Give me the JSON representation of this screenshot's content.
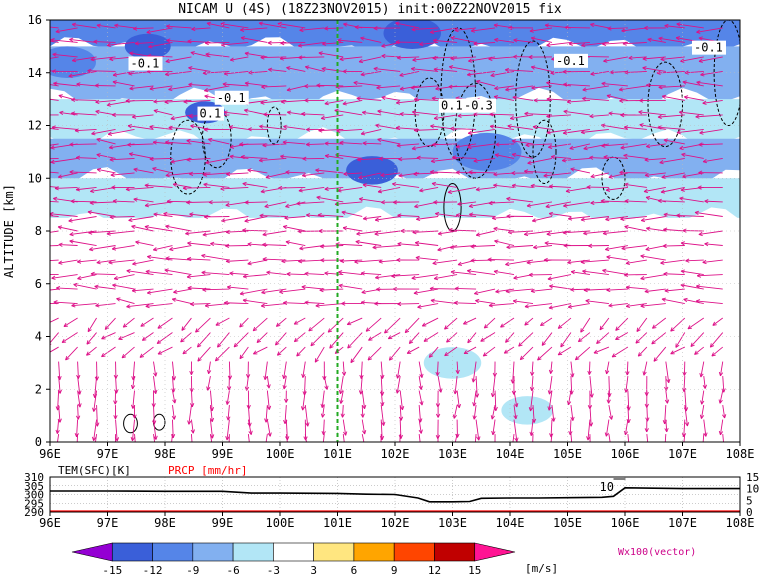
{
  "chart_data": [
    {
      "type": "heatmap",
      "title": "NICAM U (4S) (18Z23NOV2015) init:00Z22NOV2015 fix",
      "ylabel": "ALTITUDE [km]",
      "xlim": [
        96,
        108
      ],
      "ylim": [
        0,
        16
      ],
      "x_ticks": [
        "96E",
        "97E",
        "98E",
        "99E",
        "100E",
        "101E",
        "102E",
        "103E",
        "104E",
        "105E",
        "106E",
        "107E",
        "108E"
      ],
      "y_ticks": [
        "0",
        "2",
        "4",
        "6",
        "8",
        "10",
        "12",
        "14",
        "16"
      ],
      "grid": true,
      "shading": "zonal wind U [m/s]",
      "contour_labels": [
        {
          "text": "-0.1",
          "x": 97.4,
          "z": 14.2
        },
        {
          "text": "-0.1",
          "x": 98.9,
          "z": 12.9
        },
        {
          "text": "0.1",
          "x": 98.6,
          "z": 12.3
        },
        {
          "text": "0.1",
          "x": 102.8,
          "z": 12.6
        },
        {
          "text": "-0.3",
          "x": 103.2,
          "z": 12.6
        },
        {
          "text": "-0.1",
          "x": 104.8,
          "z": 14.3
        },
        {
          "text": "-0.1",
          "x": 107.2,
          "z": 14.8
        }
      ],
      "marker_line": {
        "x": 101.0,
        "color": "#22aa22"
      },
      "vector_label": "Wx100(vector)",
      "layers": [
        {
          "z": [
            15.0,
            16.0
          ],
          "value": -12
        },
        {
          "z": [
            13.0,
            15.0
          ],
          "value": -9
        },
        {
          "z": [
            11.5,
            13.0
          ],
          "value": -6
        },
        {
          "z": [
            10.0,
            11.5
          ],
          "value": -9
        },
        {
          "z": [
            8.5,
            10.0
          ],
          "value": -6
        },
        {
          "z": [
            5.5,
            8.5
          ],
          "value": -3
        },
        {
          "z": [
            3.5,
            5.5
          ],
          "value": -1
        },
        {
          "z": [
            0.0,
            3.5
          ],
          "value": 0
        }
      ],
      "blobs": [
        {
          "x": 98.7,
          "z": 12.5,
          "r": 0.35,
          "value": -15
        },
        {
          "x": 97.7,
          "z": 15.0,
          "r": 0.4,
          "value": -15
        },
        {
          "x": 101.6,
          "z": 10.3,
          "r": 0.45,
          "value": -15
        },
        {
          "x": 102.3,
          "z": 15.5,
          "r": 0.5,
          "value": -15
        },
        {
          "x": 96.3,
          "z": 14.4,
          "r": 0.5,
          "value": -12
        },
        {
          "x": 103.6,
          "z": 11.0,
          "r": 0.6,
          "value": -12
        },
        {
          "x": 104.3,
          "z": 1.2,
          "r": 0.45,
          "value": -6
        },
        {
          "x": 103.0,
          "z": 3.0,
          "r": 0.5,
          "value": -6
        }
      ]
    },
    {
      "type": "line",
      "series": [
        {
          "name": "TEM(SFC)[K]",
          "color": "#000000",
          "x": [
            96,
            97,
            98,
            99,
            99.5,
            100,
            101,
            101.5,
            102,
            102.4,
            102.6,
            103,
            103.3,
            103.5,
            104,
            104.5,
            105,
            105.6,
            105.8,
            106,
            106.5,
            107,
            108
          ],
          "y": [
            302.0,
            302.0,
            301.8,
            301.8,
            300.8,
            300.8,
            300.6,
            300.2,
            300.0,
            298.0,
            295.8,
            295.8,
            296.0,
            297.8,
            298.0,
            298.0,
            298.2,
            298.4,
            299.0,
            303.8,
            303.6,
            303.4,
            303.4
          ]
        },
        {
          "name": "PRCP [mm/hr]",
          "color": "#ff0000",
          "x": [
            96,
            108
          ],
          "y": [
            0,
            0
          ]
        }
      ],
      "left_axis": {
        "label": "TEM(SFC)[K]",
        "ylim": [
          290,
          310
        ],
        "ticks": [
          "290",
          "295",
          "300",
          "305",
          "310"
        ]
      },
      "right_axis": {
        "label": "PRCP [mm/hr]",
        "ylim": [
          0,
          15
        ],
        "ticks": [
          "0",
          "5",
          "10",
          "15"
        ]
      },
      "x_ticks": [
        "96E",
        "97E",
        "98E",
        "99E",
        "100E",
        "101E",
        "102E",
        "103E",
        "104E",
        "105E",
        "106E",
        "107E",
        "108E"
      ],
      "annotation": {
        "text": "10",
        "x": 105.8
      }
    }
  ],
  "colorbar": {
    "levels": [
      "-15",
      "-12",
      "-9",
      "-6",
      "-3",
      "3",
      "6",
      "9",
      "12",
      "15"
    ],
    "colors": [
      "#9400d3",
      "#3a5fd9",
      "#5585e8",
      "#82b0f0",
      "#b2e6f6",
      "#ffffff",
      "#ffe680",
      "#ffa500",
      "#ff4500",
      "#c00000",
      "#ff1493"
    ],
    "unit": "[m/s]"
  },
  "legend_text": "Wx100(vector)",
  "vector_color": "#dd1188"
}
